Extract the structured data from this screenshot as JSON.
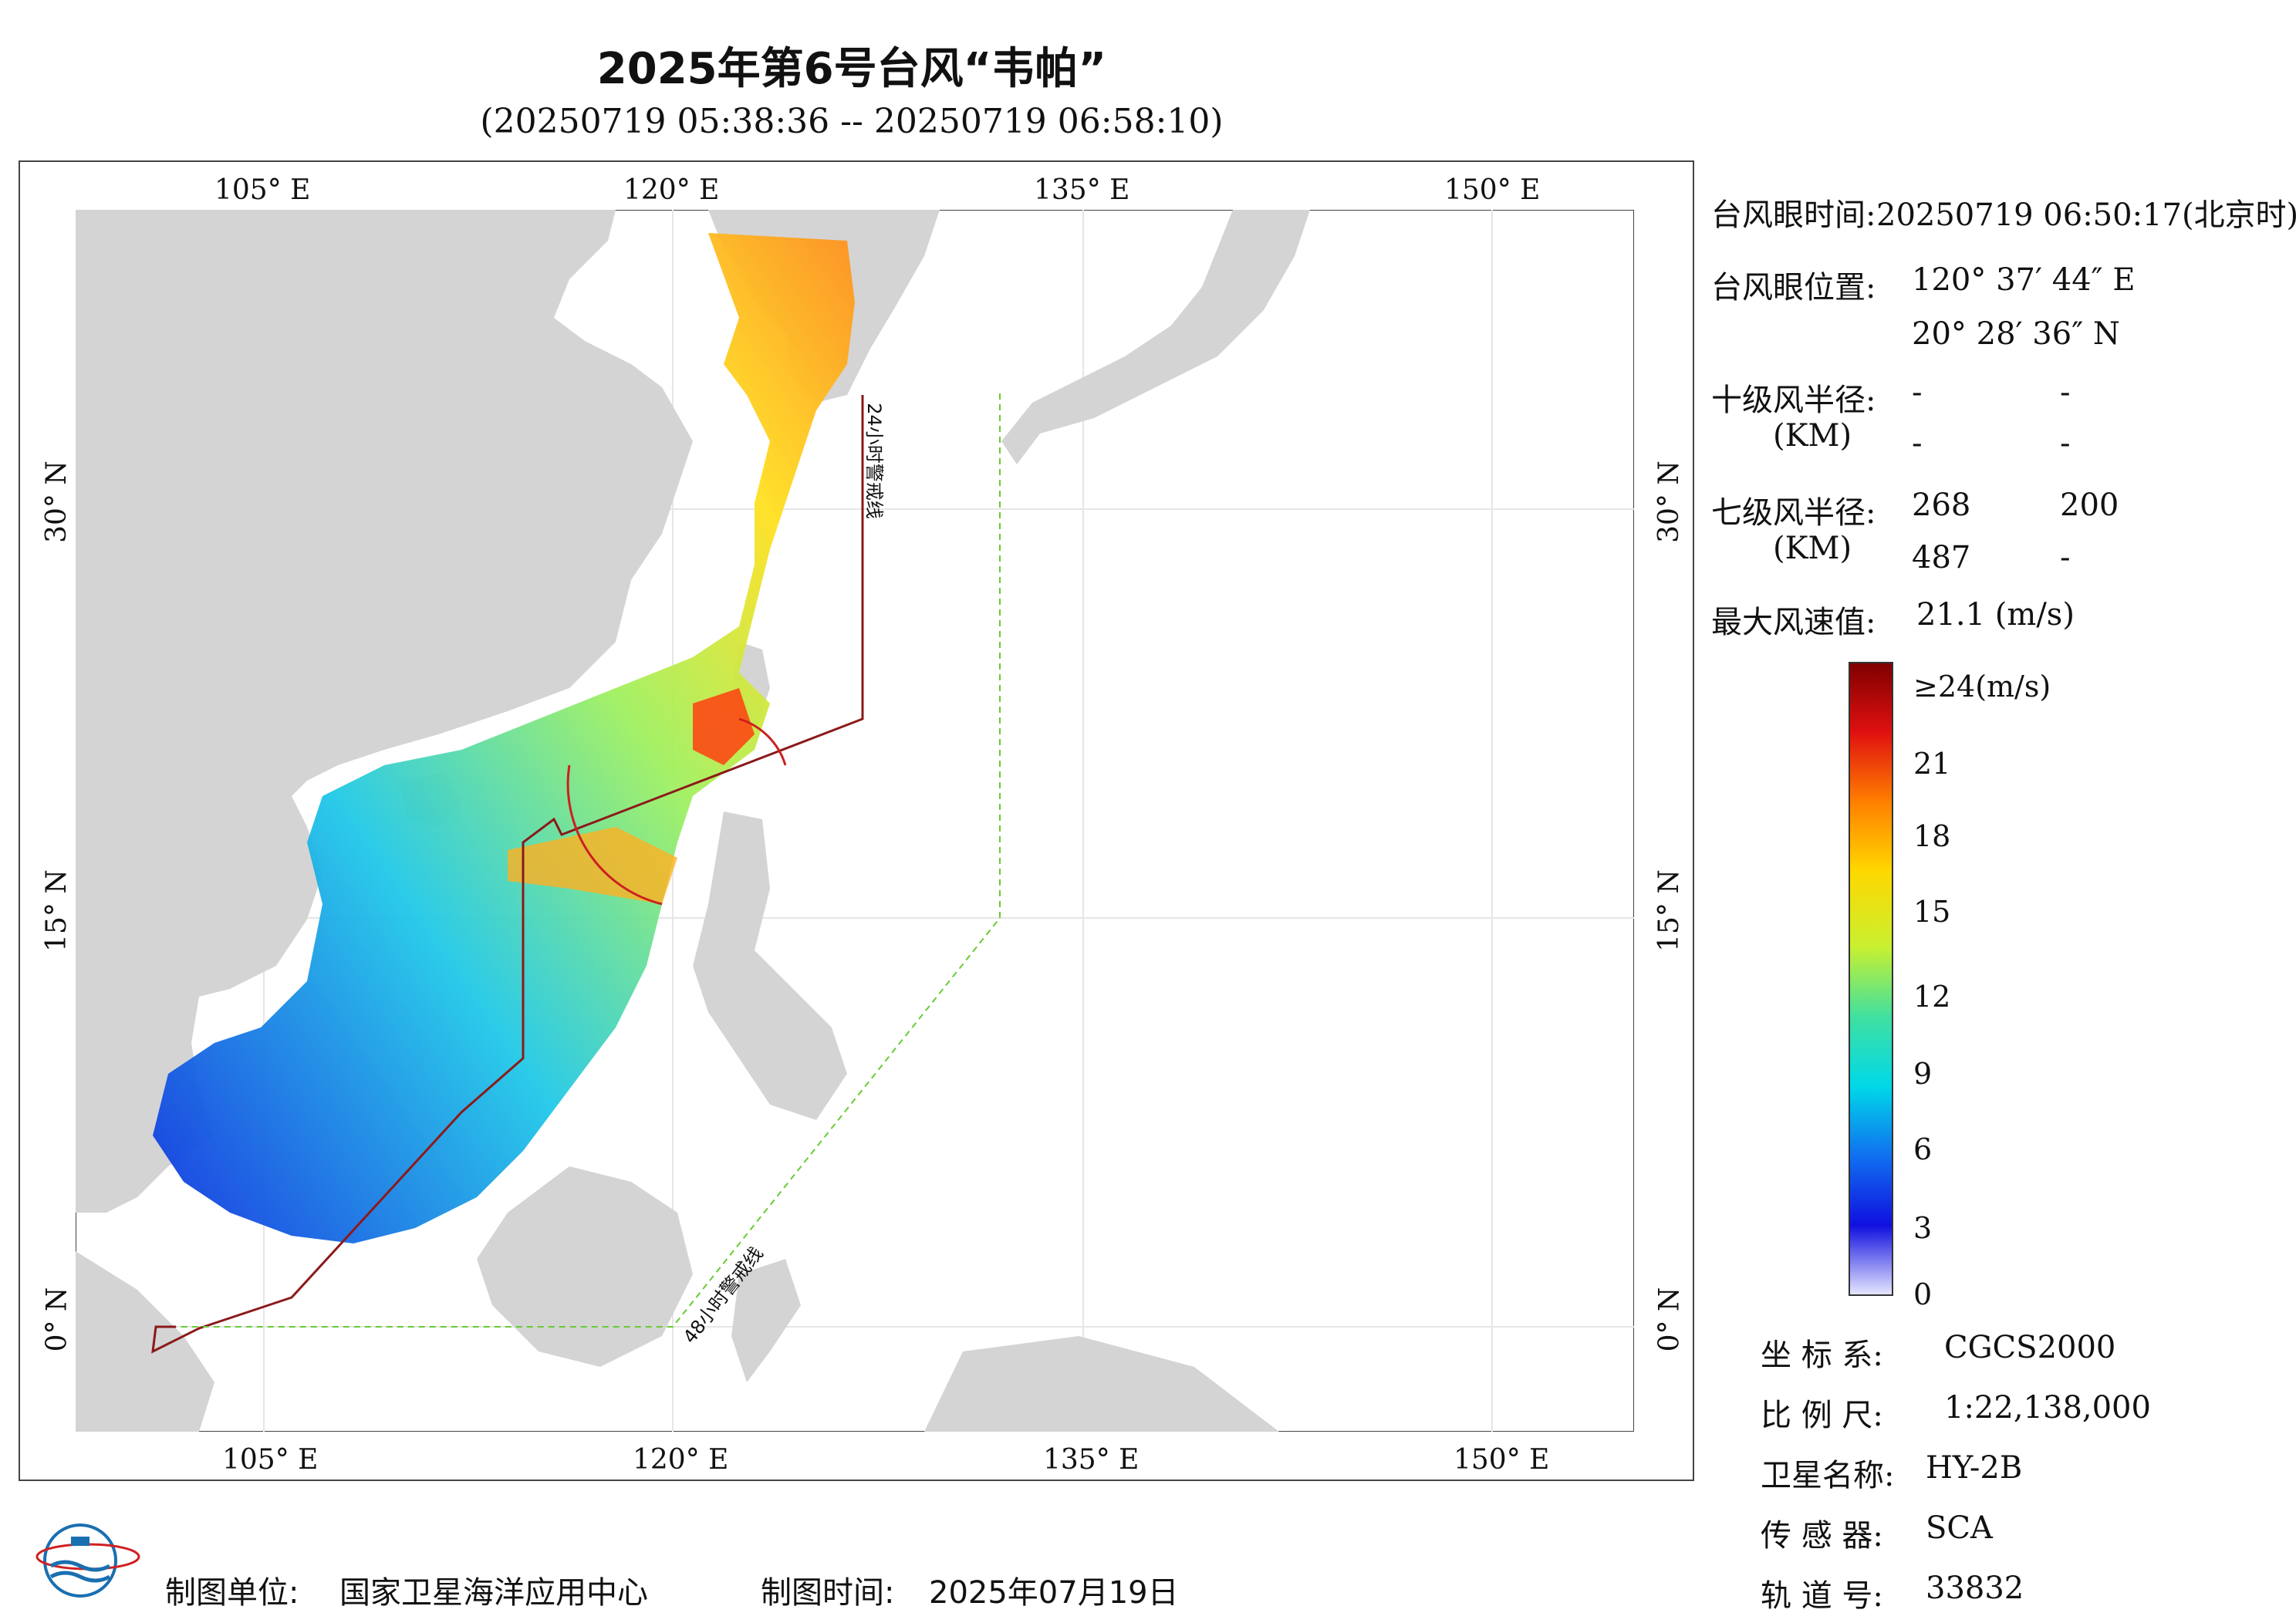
{
  "title": "2025年第6号台风“韦帕”",
  "subtitle": "(20250719 05:38:36 -- 20250719 06:58:10)",
  "map": {
    "lon_ticks": [
      "105° E",
      "120° E",
      "135° E",
      "150° E"
    ],
    "lat_ticks": [
      "30° N",
      "15° N",
      "0° N"
    ],
    "warning_line_24": "24小时警戒线",
    "warning_line_48": "48小时警戒线",
    "colors": {
      "land": "#d4d4d4",
      "sea": "#ffffff",
      "line24": "#8b1a1a",
      "line48": "#66cc33"
    }
  },
  "info": {
    "eye_time_label": "台风眼时间:",
    "eye_time_value": "20250719 06:50:17(北京时)",
    "eye_pos_label": "台风眼位置:",
    "eye_lon": "120° 37′ 44″ E",
    "eye_lat": "20° 28′ 36″ N",
    "r10_label": "十级风半径:",
    "r10_unit": "(KM)",
    "r10_values": [
      "-",
      "-",
      "-",
      "-"
    ],
    "r7_label": "七级风半径:",
    "r7_unit": "(KM)",
    "r7_values": [
      "268",
      "200",
      "487",
      "-"
    ],
    "max_wind_label": "最大风速值:",
    "max_wind_value": "21.1  (m/s)"
  },
  "colorbar": {
    "labels": [
      "≥24(m/s)",
      "21",
      "18",
      "15",
      "12",
      "9",
      "6",
      "3",
      "0"
    ],
    "stops": [
      "#7f0000",
      "#e01010",
      "#ff7f00",
      "#ffd800",
      "#c8f030",
      "#40e0a0",
      "#00d8e8",
      "#1070f0",
      "#1010e0",
      "#e8e8ff"
    ]
  },
  "meta": {
    "coord_label": "坐 标 系:",
    "coord_value": "CGCS2000",
    "scale_label": "比 例 尺:",
    "scale_value": "1:22,138,000",
    "satellite_label": "卫星名称:",
    "satellite_value": "HY-2B",
    "sensor_label": "传 感 器:",
    "sensor_value": "SCA",
    "orbit_label": "轨 道 号:",
    "orbit_value": "33832"
  },
  "footer": {
    "unit_label": "制图单位:",
    "unit_value": "国家卫星海洋应用中心",
    "date_label": "制图时间:",
    "date_value": "2025年07月19日"
  }
}
